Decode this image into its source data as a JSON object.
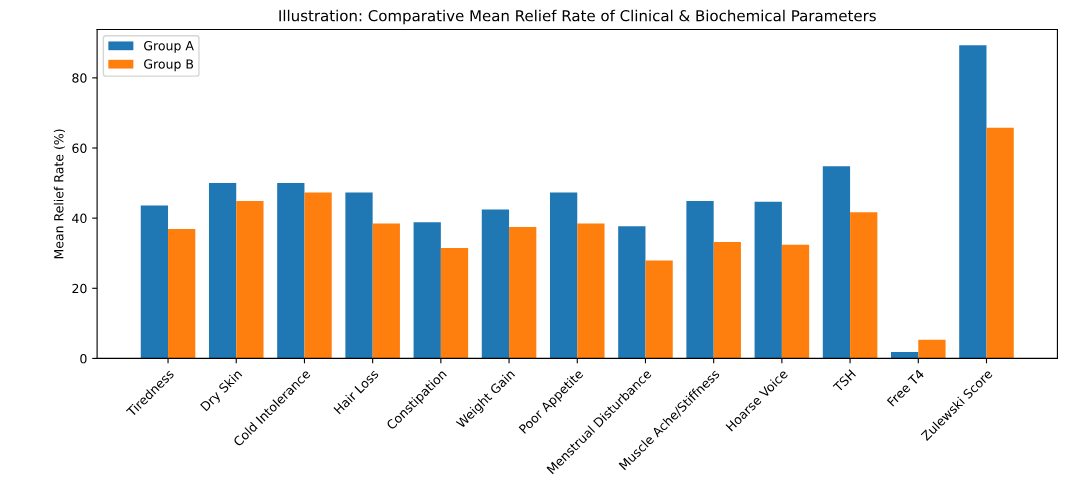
{
  "chart_data": {
    "type": "bar",
    "title": "Illustration: Comparative Mean Relief Rate of Clinical & Biochemical Parameters",
    "ylabel": "Mean Relief Rate (%)",
    "categories": [
      "Tiredness",
      "Dry Skin",
      "Cold Intolerance",
      "Hair Loss",
      "Constipation",
      "Weight Gain",
      "Poor Appetite",
      "Menstrual Disturbance",
      "Muscle Ache/Stiffness",
      "Hoarse Voice",
      "TSH",
      "Free T4",
      "Zulewski Score"
    ],
    "series": [
      {
        "name": "Group A",
        "color": "#1f77b4",
        "values": [
          43.6,
          50,
          50,
          47.3,
          38.8,
          42.5,
          47.3,
          37.7,
          44.9,
          44.7,
          54.8,
          1.8,
          89.3
        ]
      },
      {
        "name": "Group B",
        "color": "#ff7f0e",
        "values": [
          36.9,
          44.9,
          47.3,
          38.5,
          31.5,
          37.5,
          38.5,
          27.9,
          33.2,
          32.4,
          41.7,
          5.3,
          65.8
        ]
      }
    ],
    "ylim": [
      0,
      93.8
    ],
    "yticks": [
      0,
      20,
      40,
      60,
      80
    ],
    "grid": false,
    "legend": "top left"
  }
}
